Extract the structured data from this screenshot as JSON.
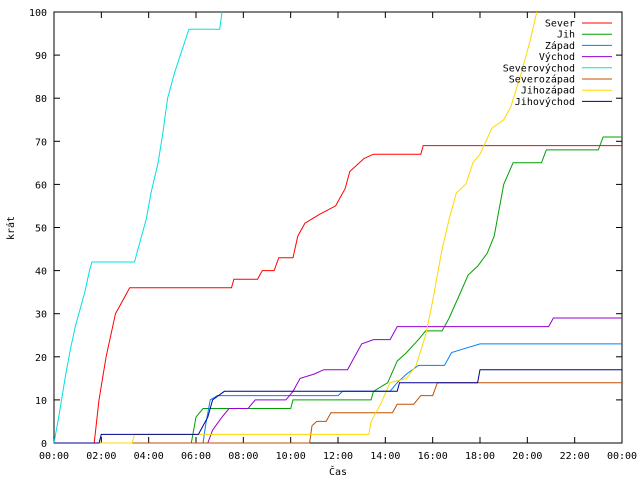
{
  "chart_data": {
    "type": "line",
    "xlabel": "Čas",
    "ylabel": "krát",
    "xlim": [
      0,
      24
    ],
    "ylim": [
      0,
      100
    ],
    "x_ticks": [
      {
        "v": 0,
        "label": "00:00"
      },
      {
        "v": 2,
        "label": "02:00"
      },
      {
        "v": 4,
        "label": "04:00"
      },
      {
        "v": 6,
        "label": "06:00"
      },
      {
        "v": 8,
        "label": "08:00"
      },
      {
        "v": 10,
        "label": "10:00"
      },
      {
        "v": 12,
        "label": "12:00"
      },
      {
        "v": 14,
        "label": "14:00"
      },
      {
        "v": 16,
        "label": "16:00"
      },
      {
        "v": 18,
        "label": "18:00"
      },
      {
        "v": 20,
        "label": "20:00"
      },
      {
        "v": 22,
        "label": "22:00"
      },
      {
        "v": 24,
        "label": "00:00"
      }
    ],
    "y_ticks": [
      0,
      10,
      20,
      30,
      40,
      50,
      60,
      70,
      80,
      90,
      100
    ],
    "legend_position": "top-right",
    "grid": false,
    "series": [
      {
        "name": "Sever",
        "color": "#ff0000",
        "points": [
          [
            0,
            0
          ],
          [
            1.7,
            0
          ],
          [
            1.9,
            10
          ],
          [
            2.2,
            20
          ],
          [
            2.6,
            30
          ],
          [
            3.2,
            36
          ],
          [
            7.5,
            36
          ],
          [
            7.6,
            38
          ],
          [
            8.6,
            38
          ],
          [
            8.8,
            40
          ],
          [
            9.3,
            40
          ],
          [
            9.5,
            43
          ],
          [
            10.1,
            43
          ],
          [
            10.3,
            48
          ],
          [
            10.6,
            51
          ],
          [
            10.9,
            52
          ],
          [
            11.2,
            53
          ],
          [
            11.9,
            55
          ],
          [
            12.3,
            59
          ],
          [
            12.5,
            63
          ],
          [
            13.1,
            66
          ],
          [
            13.5,
            67
          ],
          [
            15.5,
            67
          ],
          [
            15.6,
            69
          ],
          [
            24,
            69
          ]
        ]
      },
      {
        "name": "Jih",
        "color": "#00a000",
        "points": [
          [
            0,
            0
          ],
          [
            5.8,
            0
          ],
          [
            6.0,
            6
          ],
          [
            6.3,
            8
          ],
          [
            8,
            8
          ],
          [
            10,
            8
          ],
          [
            10.1,
            10
          ],
          [
            13.4,
            10
          ],
          [
            13.5,
            12
          ],
          [
            14.1,
            14
          ],
          [
            14.5,
            19
          ],
          [
            14.9,
            21
          ],
          [
            15.4,
            24
          ],
          [
            15.7,
            26
          ],
          [
            16.4,
            26
          ],
          [
            16.7,
            29
          ],
          [
            17.1,
            34
          ],
          [
            17.5,
            39
          ],
          [
            17.9,
            41
          ],
          [
            18.3,
            44
          ],
          [
            18.6,
            48
          ],
          [
            19.0,
            60
          ],
          [
            19.4,
            65
          ],
          [
            20.6,
            65
          ],
          [
            20.8,
            68
          ],
          [
            23.0,
            68
          ],
          [
            23.2,
            71
          ],
          [
            24,
            71
          ]
        ]
      },
      {
        "name": "Západ",
        "color": "#0080ff",
        "points": [
          [
            0,
            0
          ],
          [
            6.3,
            0
          ],
          [
            6.4,
            4
          ],
          [
            6.6,
            10
          ],
          [
            6.9,
            11
          ],
          [
            12.0,
            11
          ],
          [
            12.2,
            12
          ],
          [
            14.2,
            12
          ],
          [
            14.5,
            14
          ],
          [
            14.9,
            16
          ],
          [
            15.4,
            18
          ],
          [
            16.5,
            18
          ],
          [
            16.8,
            21
          ],
          [
            17.4,
            22
          ],
          [
            18.0,
            23
          ],
          [
            24,
            23
          ]
        ]
      },
      {
        "name": "Východ",
        "color": "#9400d3",
        "points": [
          [
            0,
            0
          ],
          [
            6.5,
            0
          ],
          [
            6.7,
            3
          ],
          [
            7.1,
            6
          ],
          [
            7.4,
            8
          ],
          [
            8.2,
            8
          ],
          [
            8.5,
            10
          ],
          [
            9.8,
            10
          ],
          [
            10.1,
            12
          ],
          [
            10.4,
            15
          ],
          [
            11.0,
            16
          ],
          [
            11.4,
            17
          ],
          [
            12.4,
            17
          ],
          [
            12.7,
            20
          ],
          [
            13.0,
            23
          ],
          [
            13.5,
            24
          ],
          [
            14.2,
            24
          ],
          [
            14.5,
            27
          ],
          [
            20.9,
            27
          ],
          [
            21.1,
            29
          ],
          [
            24,
            29
          ]
        ]
      },
      {
        "name": "Severovýchod",
        "color": "#00e0e0",
        "points": [
          [
            0,
            0
          ],
          [
            0.2,
            6
          ],
          [
            0.5,
            16
          ],
          [
            0.7,
            22
          ],
          [
            0.9,
            27
          ],
          [
            1.3,
            35
          ],
          [
            1.5,
            40
          ],
          [
            1.6,
            42
          ],
          [
            3.4,
            42
          ],
          [
            3.6,
            46
          ],
          [
            3.9,
            52
          ],
          [
            4.1,
            58
          ],
          [
            4.4,
            65
          ],
          [
            4.6,
            72
          ],
          [
            4.8,
            80
          ],
          [
            5.1,
            86
          ],
          [
            5.4,
            91
          ],
          [
            5.7,
            96
          ],
          [
            7.0,
            96
          ],
          [
            7.1,
            100
          ]
        ]
      },
      {
        "name": "Severozápad",
        "color": "#c05000",
        "points": [
          [
            0,
            0
          ],
          [
            10.8,
            0
          ],
          [
            10.9,
            4
          ],
          [
            11.1,
            5
          ],
          [
            11.5,
            5
          ],
          [
            11.7,
            7
          ],
          [
            14.3,
            7
          ],
          [
            14.5,
            9
          ],
          [
            15.2,
            9
          ],
          [
            15.5,
            11
          ],
          [
            16.0,
            11
          ],
          [
            16.2,
            14
          ],
          [
            24,
            14
          ]
        ]
      },
      {
        "name": "Jihozápad",
        "color": "#ffd700",
        "points": [
          [
            0,
            0
          ],
          [
            3.3,
            0
          ],
          [
            3.4,
            2
          ],
          [
            7.0,
            2
          ],
          [
            13.3,
            2
          ],
          [
            13.4,
            5
          ],
          [
            13.8,
            9
          ],
          [
            14.2,
            14
          ],
          [
            14.9,
            15
          ],
          [
            15.3,
            18
          ],
          [
            15.7,
            25
          ],
          [
            16.0,
            33
          ],
          [
            16.4,
            45
          ],
          [
            16.7,
            52
          ],
          [
            17.0,
            58
          ],
          [
            17.4,
            60
          ],
          [
            17.7,
            65
          ],
          [
            18.0,
            67
          ],
          [
            18.5,
            73
          ],
          [
            19.0,
            75
          ],
          [
            19.3,
            78
          ],
          [
            19.7,
            85
          ],
          [
            20.1,
            93
          ],
          [
            20.4,
            100
          ]
        ]
      },
      {
        "name": "Jihovýchod",
        "color": "#000090",
        "points": [
          [
            0,
            0
          ],
          [
            1.9,
            0
          ],
          [
            2.0,
            2
          ],
          [
            6.1,
            2
          ],
          [
            6.3,
            4
          ],
          [
            6.5,
            6
          ],
          [
            6.7,
            10
          ],
          [
            7.2,
            12
          ],
          [
            14.5,
            12
          ],
          [
            14.6,
            14
          ],
          [
            17.9,
            14
          ],
          [
            18.0,
            17
          ],
          [
            24,
            17
          ]
        ]
      }
    ]
  }
}
